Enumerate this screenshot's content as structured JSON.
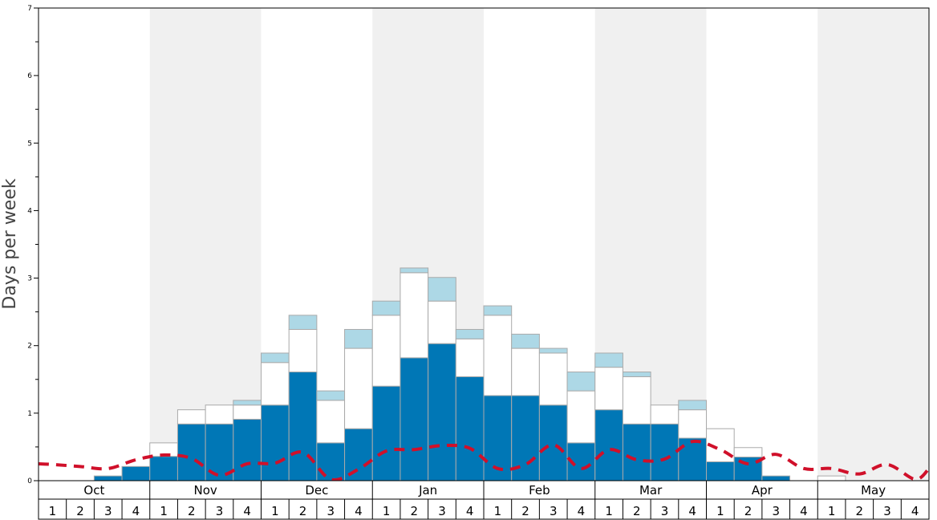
{
  "chart_data": {
    "type": "bar",
    "stacked": true,
    "title": "",
    "xlabel": "",
    "ylabel": "Days per week",
    "ylim": [
      0,
      7
    ],
    "yticks": [
      "0",
      "1",
      "2",
      "3",
      "4",
      "5",
      "6",
      "7"
    ],
    "months": [
      "Oct",
      "Nov",
      "Dec",
      "Jan",
      "Feb",
      "Mar",
      "Apr",
      "May"
    ],
    "weeks": [
      "1",
      "2",
      "3",
      "4"
    ],
    "colors": {
      "bottom": "#0077b6",
      "middle": "#ffffff",
      "top": "#add8e6",
      "line": "#d0102a",
      "band": "#f0f0f0",
      "bar_edge": "#aaaaaa"
    },
    "series": [
      {
        "values": [
          0,
          0,
          0.07,
          0.21,
          0.36,
          0.84,
          0.84,
          0.91,
          1.12,
          1.61,
          0.56,
          0.77,
          1.4,
          1.82,
          2.03,
          1.54,
          1.26,
          1.26,
          1.12,
          0.56,
          1.05,
          0.84,
          0.84,
          0.63,
          0.28,
          0.35,
          0.07,
          0,
          0,
          0,
          0,
          0
        ]
      },
      {
        "values": [
          0,
          0,
          0,
          0,
          0.2,
          0.21,
          0.28,
          0.21,
          0.63,
          0.63,
          0.63,
          1.19,
          1.05,
          1.26,
          0.63,
          0.56,
          1.19,
          0.7,
          0.77,
          0.77,
          0.63,
          0.7,
          0.28,
          0.42,
          0.49,
          0.14,
          0,
          0,
          0.07,
          0,
          0,
          0
        ]
      },
      {
        "values": [
          0,
          0,
          0,
          0,
          0,
          0,
          0,
          0.07,
          0.14,
          0.21,
          0.14,
          0.28,
          0.21,
          0.07,
          0.35,
          0.14,
          0.14,
          0.21,
          0.07,
          0.28,
          0.21,
          0.07,
          0,
          0.14,
          0,
          0,
          0,
          0,
          0,
          0,
          0,
          0
        ]
      },
      {
        "type": "line",
        "x": [
          0,
          0.5,
          1.5,
          2.5,
          3.5,
          4.5,
          5.5,
          6.5,
          7.5,
          8.5,
          9.5,
          10.5,
          11.5,
          12.5,
          13.5,
          14.5,
          15.5,
          16.5,
          17.5,
          18.5,
          19.5,
          20.5,
          21.5,
          22.5,
          23.5,
          24.5,
          25.5,
          26.5,
          27.5,
          28.5,
          29.5,
          30.5,
          31.5,
          32
        ],
        "values": [
          0.25,
          0.24,
          0.21,
          0.18,
          0.31,
          0.38,
          0.33,
          0.08,
          0.25,
          0.26,
          0.42,
          0.02,
          0.17,
          0.44,
          0.46,
          0.52,
          0.48,
          0.18,
          0.24,
          0.53,
          0.18,
          0.46,
          0.31,
          0.32,
          0.58,
          0.46,
          0.25,
          0.39,
          0.18,
          0.18,
          0.1,
          0.24,
          0.02,
          0.18
        ]
      }
    ]
  }
}
